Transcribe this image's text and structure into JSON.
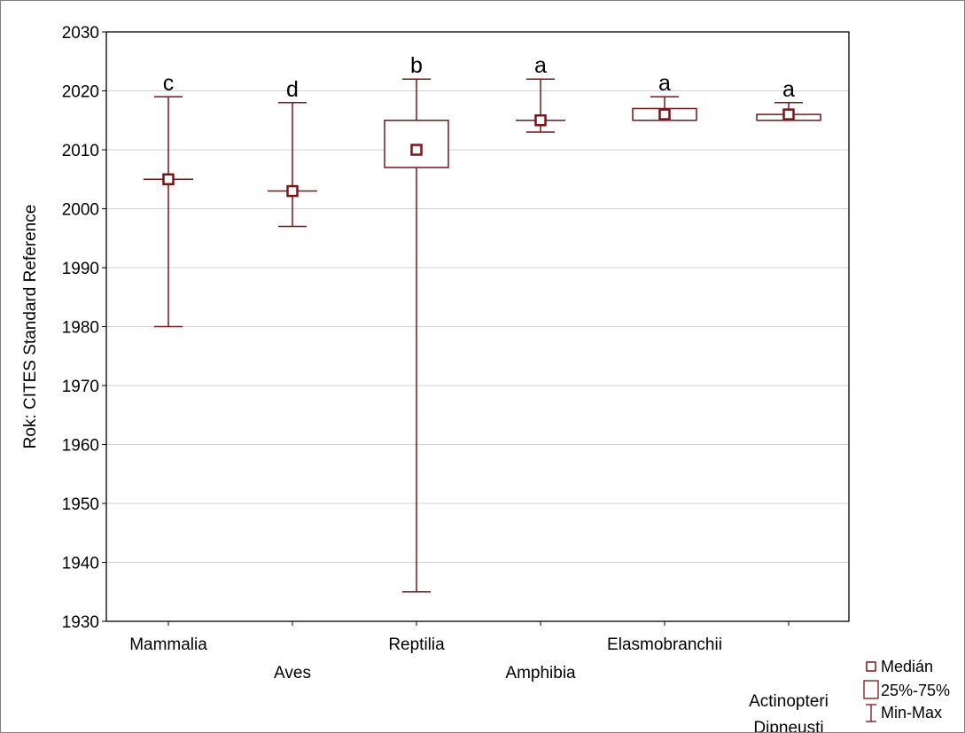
{
  "chart_data": {
    "type": "boxplot",
    "ylabel": "Rok: CITES Standard Reference",
    "ylim": [
      1930,
      2030
    ],
    "yticks": [
      1930,
      1940,
      1950,
      1960,
      1970,
      1980,
      1990,
      2000,
      2010,
      2020,
      2030
    ],
    "grid": true,
    "colors": {
      "series": "#7b1416",
      "grid": "#d0d0d0"
    },
    "categories": [
      {
        "label": "Mammalia",
        "min": 1980,
        "q1": 2005,
        "median": 2005,
        "q3": 2005,
        "max": 2019,
        "group": "c"
      },
      {
        "label": "Aves",
        "min": 1997,
        "q1": 2003,
        "median": 2003,
        "q3": 2003,
        "max": 2018,
        "group": "d"
      },
      {
        "label": "Reptilia",
        "min": 1935,
        "q1": 2007,
        "median": 2010,
        "q3": 2015,
        "max": 2022,
        "group": "b"
      },
      {
        "label": "Amphibia",
        "min": 2013,
        "q1": 2015,
        "median": 2015,
        "q3": 2015,
        "max": 2022,
        "group": "a"
      },
      {
        "label": "Elasmobranchii",
        "min": 2015,
        "q1": 2015,
        "median": 2016,
        "q3": 2017,
        "max": 2019,
        "group": "a"
      },
      {
        "label": "Actinopteri\nDipneusti\nCoelacanthi",
        "min": 2015,
        "q1": 2015,
        "median": 2016,
        "q3": 2016,
        "max": 2018,
        "group": "a"
      }
    ],
    "legend": {
      "position": "bottom-right",
      "items": [
        {
          "symbol": "median-square",
          "label": "Medián"
        },
        {
          "symbol": "box",
          "label": "25%-75%"
        },
        {
          "symbol": "whisker",
          "label": "Min-Max"
        }
      ]
    }
  }
}
